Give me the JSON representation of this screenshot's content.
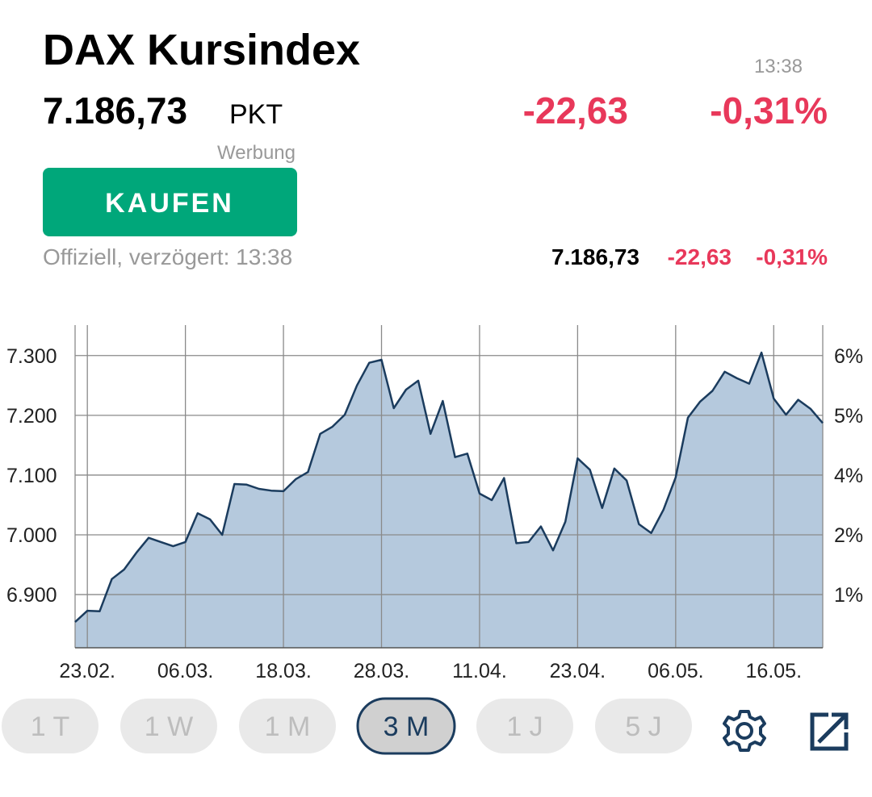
{
  "header": {
    "title": "DAX Kursindex",
    "price": "7.186,73",
    "unit": "PKT",
    "time": "13:38",
    "change": "-22,63",
    "change_pct": "-0,31%",
    "ad_label": "Werbung",
    "buy_button": "KAUFEN",
    "official": "Offiziell, verzögert: 13:38"
  },
  "summary": {
    "price": "7.186,73",
    "change": "-22,63",
    "change_pct": "-0,31%"
  },
  "chart_data": {
    "type": "area",
    "categories": [
      null,
      "23.02.",
      null,
      null,
      null,
      null,
      null,
      null,
      null,
      "06.03.",
      null,
      null,
      null,
      null,
      null,
      null,
      null,
      "18.03.",
      null,
      null,
      null,
      null,
      null,
      null,
      null,
      "28.03.",
      null,
      null,
      null,
      null,
      null,
      null,
      null,
      "11.04.",
      null,
      null,
      null,
      null,
      null,
      null,
      null,
      "23.04.",
      null,
      null,
      null,
      null,
      null,
      null,
      null,
      "06.05.",
      null,
      null,
      null,
      null,
      null,
      null,
      null,
      "16.05.",
      null,
      null,
      null,
      null
    ],
    "values": [
      6854,
      6873,
      6872,
      6926,
      6942,
      6970,
      6995,
      6988,
      6981,
      6988,
      7036,
      7026,
      7000,
      7085,
      7084,
      7077,
      7074,
      7073,
      7093,
      7105,
      7169,
      7181,
      7201,
      7250,
      7288,
      7293,
      7212,
      7243,
      7258,
      7169,
      7224,
      7130,
      7136,
      7069,
      7058,
      7095,
      6986,
      6988,
      7014,
      6974,
      7022,
      7128,
      7109,
      7045,
      7111,
      7091,
      7018,
      7003,
      7042,
      7096,
      7196,
      7223,
      7241,
      7273,
      7262,
      7253,
      7305,
      7228,
      7201,
      7226,
      7211,
      7187
    ],
    "color": "#1b3c5e",
    "fill": "#b5c9dd",
    "ylim": [
      6811,
      7351
    ],
    "yticks": [
      {
        "value": 7300,
        "label": "7.300"
      },
      {
        "value": 7200,
        "label": "7.200"
      },
      {
        "value": 7100,
        "label": "7.100"
      },
      {
        "value": 7000,
        "label": "7.000"
      },
      {
        "value": 6900,
        "label": "6.900"
      }
    ],
    "y2ticks": [
      {
        "value": 6,
        "label": "6%"
      },
      {
        "value": 5,
        "label": "5%"
      },
      {
        "value": 4,
        "label": "4%"
      },
      {
        "value": 2,
        "label": "2%"
      },
      {
        "value": 1,
        "label": "1%"
      }
    ],
    "grid": true
  },
  "range_buttons": [
    "1 T",
    "1 W",
    "1 M",
    "3 M",
    "1 J",
    "5 J"
  ],
  "active_range": "3 M"
}
